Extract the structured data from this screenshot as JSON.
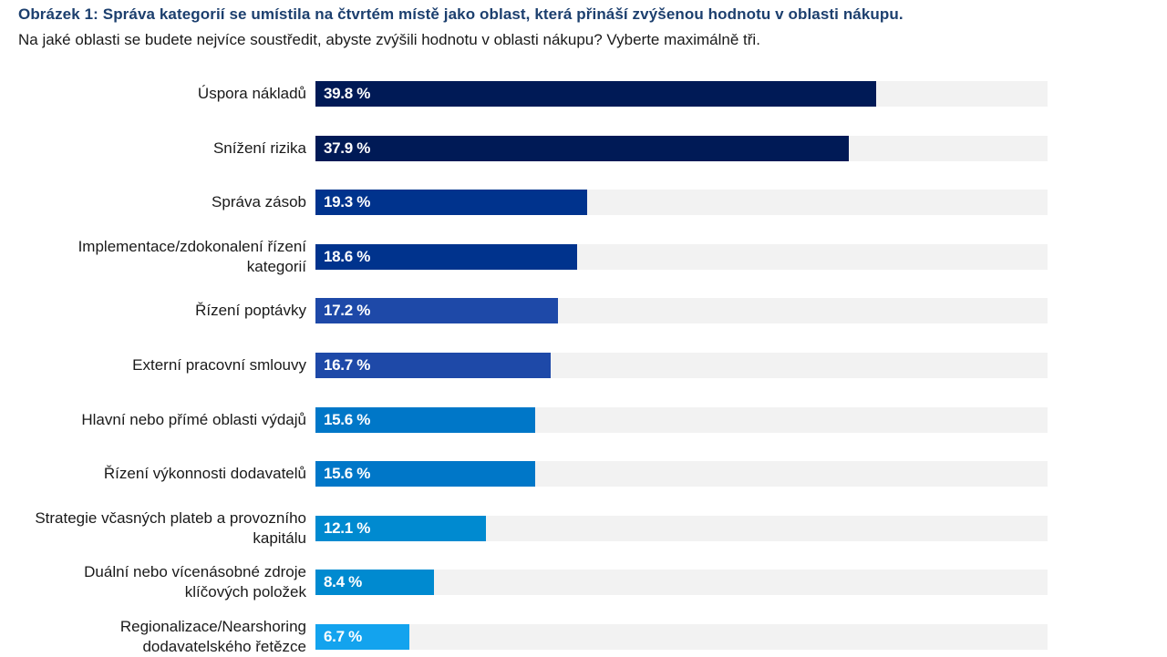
{
  "header": {
    "title": "Obrázek 1: Správa kategorií se umístila na čtvrtém místě jako oblast, která přináší zvýšenou hodnotu v oblasti nákupu.",
    "subtitle": "Na jaké oblasti se budete nejvíce soustředit, abyste zvýšili hodnotu v oblasti nákupu? Vyberte maximálně tři."
  },
  "chart_data": {
    "type": "bar",
    "orientation": "horizontal",
    "title": "Obrázek 1: Správa kategorií se umístila na čtvrtém místě jako oblast, která přináší zvýšenou hodnotu v oblasti nákupu.",
    "subtitle": "Na jaké oblasti se budete nejvíce soustředit, abyste zvýšili hodnotu v oblasti nákupu? Vyberte maximálně tři.",
    "xlabel": "",
    "ylabel": "",
    "xlim": [
      0,
      52
    ],
    "grid": false,
    "legend": "none",
    "unit": "%",
    "categories": [
      "Úspora nákladů",
      "Snížení rizika",
      "Správa zásob",
      "Implementace/zdokonalení řízení kategorií",
      "Řízení poptávky",
      "Externí pracovní smlouvy",
      "Hlavní nebo přímé oblasti výdajů",
      "Řízení výkonnosti dodavatelů",
      "Strategie včasných plateb a provozního kapitálu",
      "Duální nebo vícenásobné zdroje klíčových položek",
      "Regionalizace/Nearshoring dodavatelského řetězce"
    ],
    "category_lines": [
      [
        "Úspora nákladů"
      ],
      [
        "Snížení rizika"
      ],
      [
        "Správa zásob"
      ],
      [
        "Implementace/zdokonalení řízení",
        "kategorií"
      ],
      [
        "Řízení poptávky"
      ],
      [
        "Externí pracovní smlouvy"
      ],
      [
        "Hlavní nebo přímé oblasti výdajů"
      ],
      [
        "Řízení výkonnosti dodavatelů"
      ],
      [
        "Strategie včasných plateb a provozního",
        "kapitálu"
      ],
      [
        "Duální nebo vícenásobné zdroje",
        "klíčových položek"
      ],
      [
        "Regionalizace/Nearshoring",
        "dodavatelského řetězce"
      ]
    ],
    "values": [
      39.8,
      37.9,
      19.3,
      18.6,
      17.2,
      16.7,
      15.6,
      15.6,
      12.1,
      8.4,
      6.7
    ],
    "value_labels": [
      "39.8 %",
      "37.9 %",
      "19.3 %",
      "18.6 %",
      "17.2 %",
      "16.7 %",
      "15.6 %",
      "15.6 %",
      "12.1 %",
      "8.4 %",
      "6.7 %"
    ],
    "colors": [
      "#001a56",
      "#001a56",
      "#00338d",
      "#00338d",
      "#1e49a8",
      "#1e49a8",
      "#0077c8",
      "#0077c8",
      "#008ad0",
      "#008ad0",
      "#13a3ee"
    ],
    "track_color": "#f2f2f2"
  }
}
